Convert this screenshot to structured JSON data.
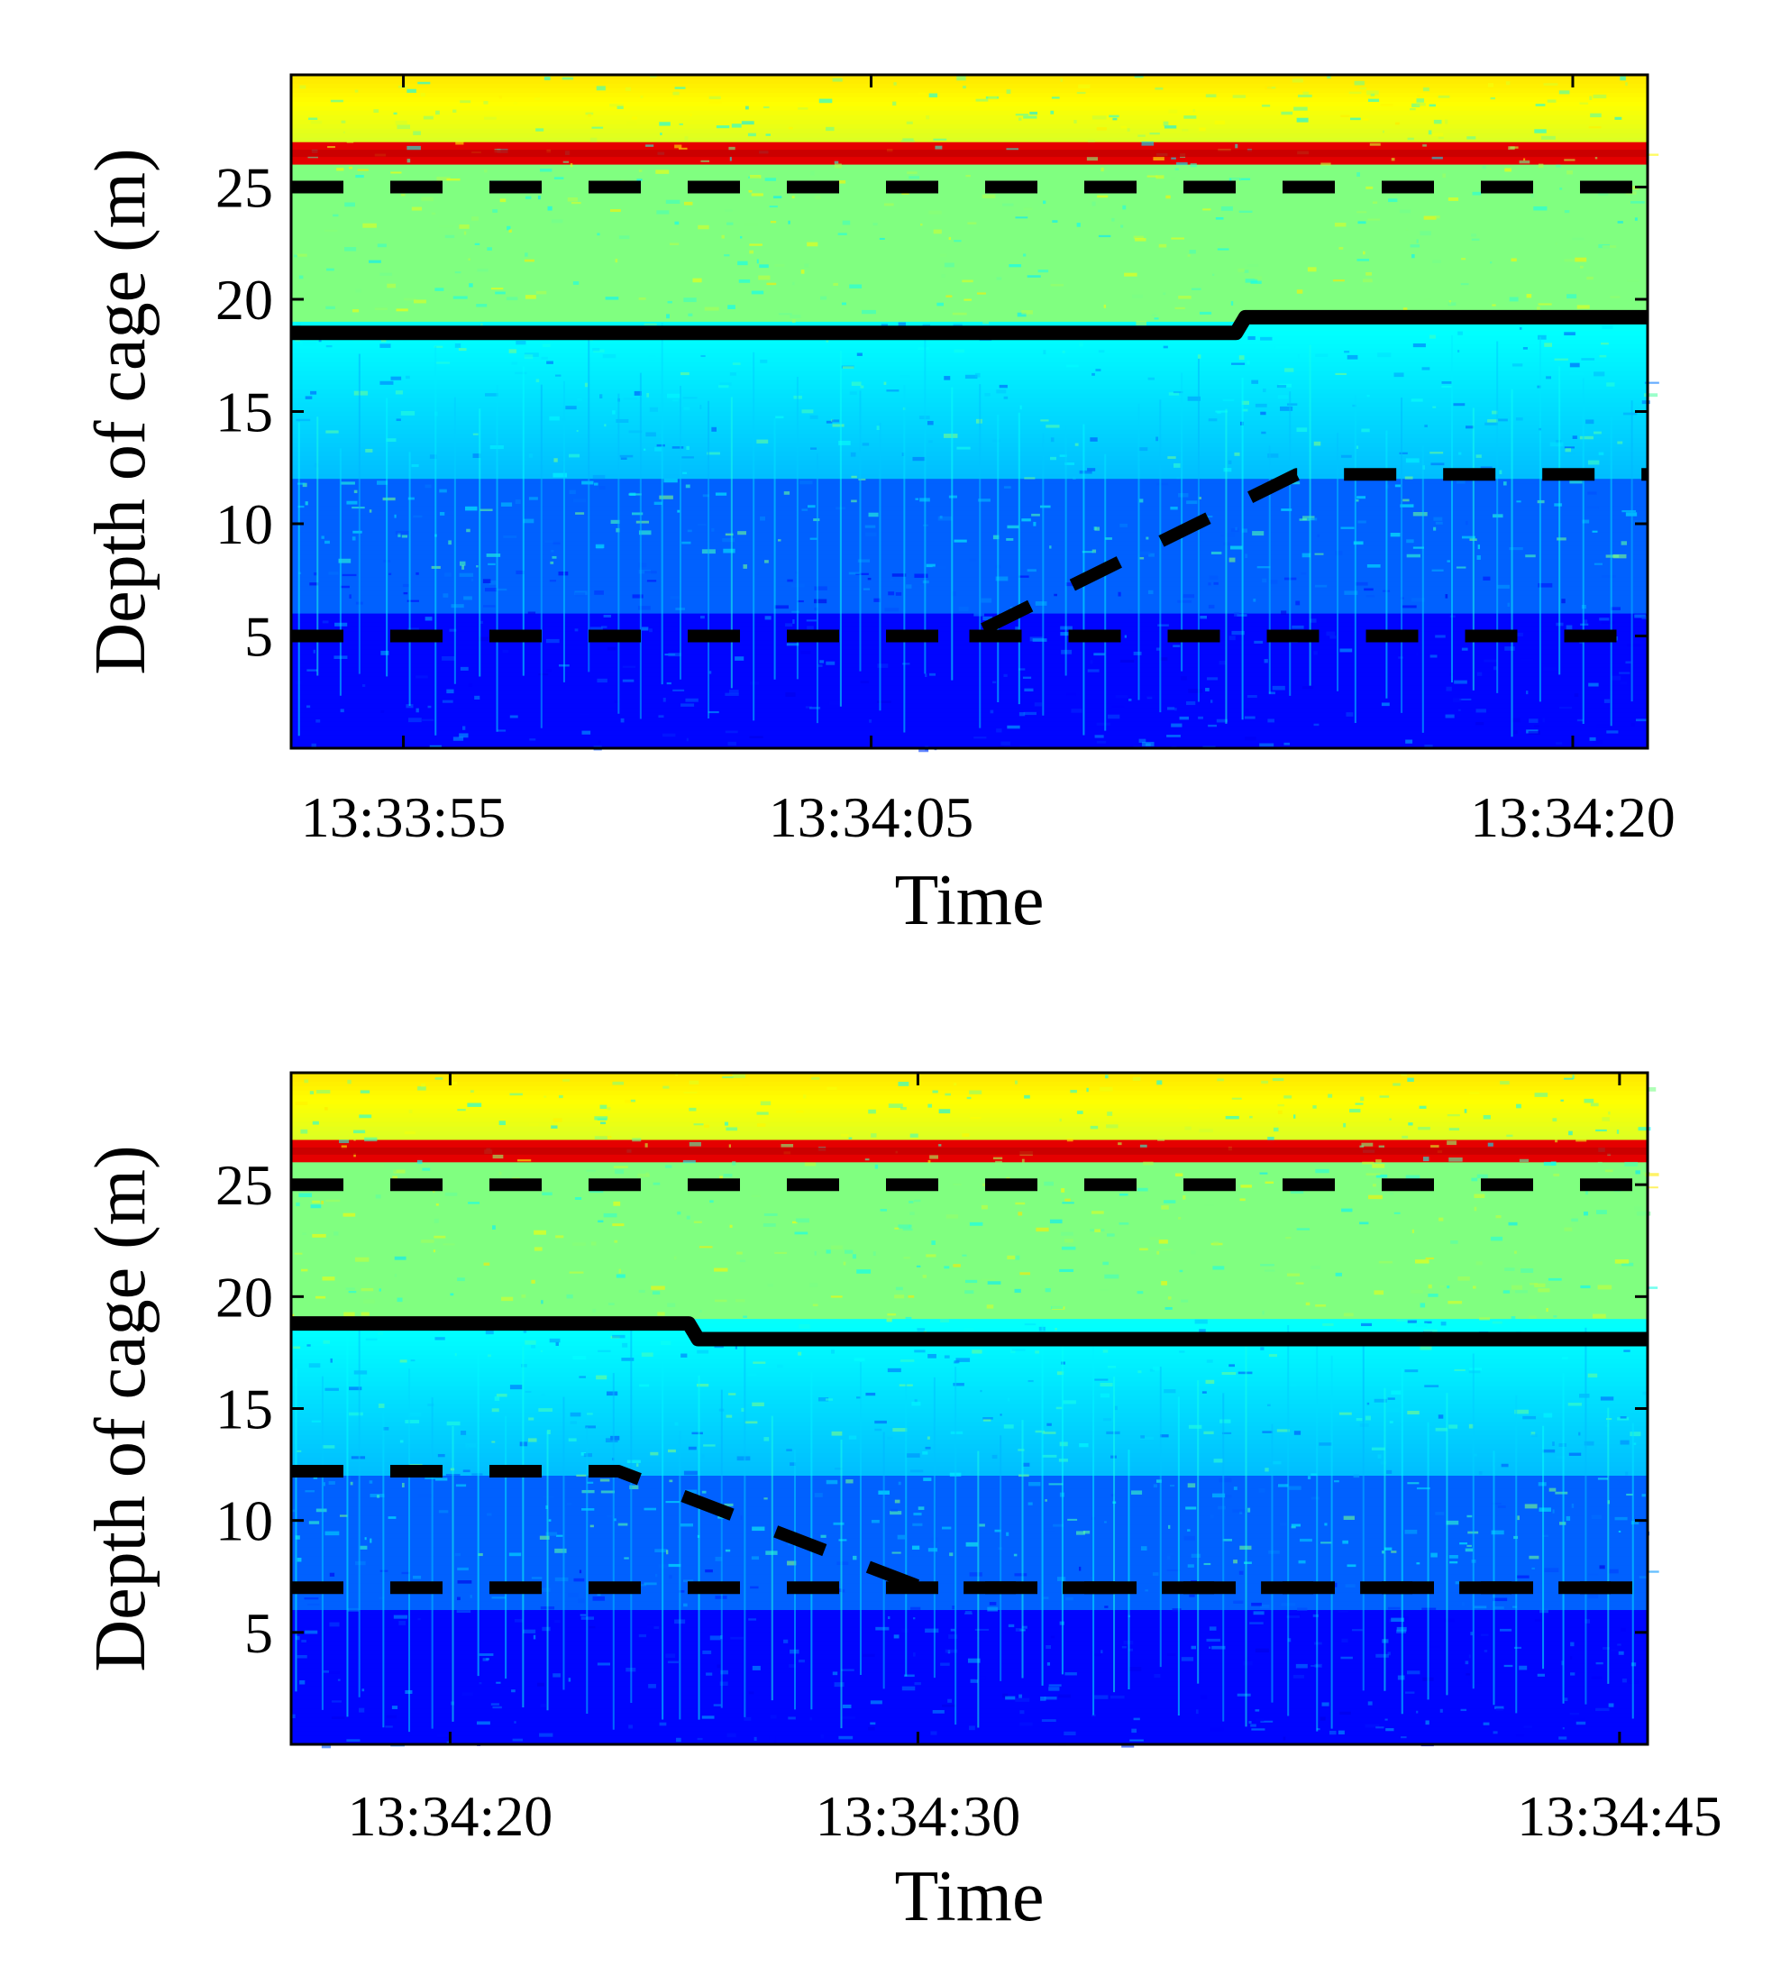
{
  "chart_data": [
    {
      "type": "heatmap",
      "title": "",
      "xlabel": "Time",
      "ylabel": "Depth of cage (m)",
      "x_tick_labels": [
        "13:33:55",
        "13:34:05",
        "13:34:20"
      ],
      "y_ticks": [
        5,
        10,
        15,
        20,
        25
      ],
      "ylim": [
        0,
        30
      ],
      "xlim_seconds": [
        0,
        29
      ],
      "x_tick_seconds": [
        2.4,
        12.4,
        27.4
      ],
      "colormap": "jet",
      "surface_depth": 26.5,
      "series": [
        {
          "style": "dashed",
          "x": [
            0,
            29
          ],
          "y": [
            25,
            25
          ]
        },
        {
          "style": "solid",
          "x": [
            0,
            20.2,
            20.4,
            29
          ],
          "y": [
            18.5,
            18.5,
            19.2,
            19.2
          ]
        },
        {
          "style": "dashed",
          "x": [
            0,
            14.5,
            21.5,
            29
          ],
          "y": [
            5,
            5,
            12.2,
            12.2
          ]
        },
        {
          "style": "dashed",
          "x": [
            14.5,
            29
          ],
          "y": [
            5,
            5
          ]
        }
      ]
    },
    {
      "type": "heatmap",
      "title": "",
      "xlabel": "Time",
      "ylabel": "Depth of cage (m)",
      "x_tick_labels": [
        "13:34:20",
        "13:34:30",
        "13:34:45"
      ],
      "y_ticks": [
        5,
        10,
        15,
        20,
        25
      ],
      "ylim": [
        0,
        30
      ],
      "xlim_seconds": [
        0,
        29
      ],
      "x_tick_seconds": [
        3.4,
        13.4,
        28.4
      ],
      "colormap": "jet",
      "surface_depth": 26.5,
      "series": [
        {
          "style": "dashed",
          "x": [
            0,
            29
          ],
          "y": [
            25,
            25
          ]
        },
        {
          "style": "solid",
          "x": [
            0,
            8.5,
            8.7,
            29
          ],
          "y": [
            18.8,
            18.8,
            18.1,
            18.1
          ]
        },
        {
          "style": "dashed",
          "x": [
            0,
            7,
            13.5,
            29
          ],
          "y": [
            12.2,
            12.2,
            7,
            7
          ]
        },
        {
          "style": "dashed",
          "x": [
            0,
            29
          ],
          "y": [
            7,
            7
          ]
        }
      ]
    }
  ]
}
